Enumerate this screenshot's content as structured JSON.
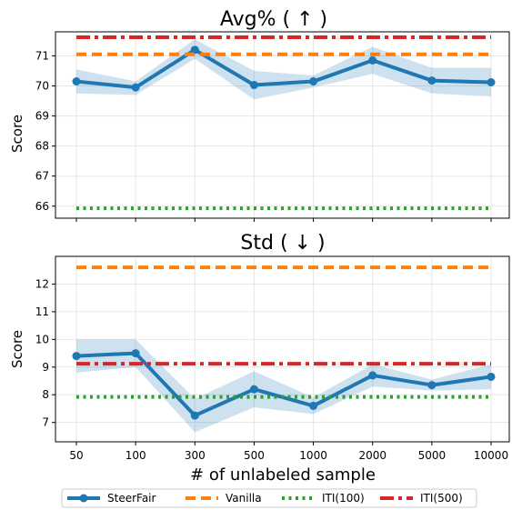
{
  "chart_data": [
    {
      "type": "line",
      "title": "Avg% ( ↑ )",
      "ylabel": "Score",
      "xlabel": "",
      "categories": [
        "50",
        "100",
        "300",
        "500",
        "1000",
        "2000",
        "5000",
        "10000"
      ],
      "ylim": [
        65.6,
        71.8
      ],
      "yticks": [
        66,
        67,
        68,
        69,
        70,
        71
      ],
      "grid": true,
      "series": [
        {
          "name": "SteerFair",
          "style": "solid-marker",
          "color": "#1f77b4",
          "values": [
            70.15,
            69.95,
            71.2,
            70.03,
            70.15,
            70.85,
            70.18,
            70.12
          ],
          "band_low": [
            69.75,
            69.7,
            70.9,
            69.55,
            69.95,
            70.4,
            69.75,
            69.65
          ],
          "band_high": [
            70.55,
            70.15,
            71.55,
            70.5,
            70.35,
            71.3,
            70.6,
            70.6
          ]
        },
        {
          "name": "Vanilla",
          "style": "dashed",
          "color": "#ff7f0e",
          "value": 71.05
        },
        {
          "name": "ITI(100)",
          "style": "dotted",
          "color": "#2ca02c",
          "value": 65.93
        },
        {
          "name": "ITI(500)",
          "style": "dashdot",
          "color": "#d62728",
          "value": 71.62
        }
      ]
    },
    {
      "type": "line",
      "title": "Std ( ↓ )",
      "ylabel": "Score",
      "xlabel": "# of unlabeled sample",
      "categories": [
        "50",
        "100",
        "300",
        "500",
        "1000",
        "2000",
        "5000",
        "10000"
      ],
      "ylim": [
        6.3,
        13.0
      ],
      "yticks": [
        7,
        8,
        9,
        10,
        11,
        12
      ],
      "grid": true,
      "series": [
        {
          "name": "SteerFair",
          "style": "solid-marker",
          "color": "#1f77b4",
          "values": [
            9.4,
            9.5,
            7.25,
            8.2,
            7.6,
            8.7,
            8.35,
            8.65
          ],
          "band_low": [
            8.8,
            9.0,
            6.65,
            7.55,
            7.3,
            8.3,
            8.15,
            8.2
          ],
          "band_high": [
            10.0,
            10.0,
            7.85,
            8.85,
            7.9,
            9.1,
            8.55,
            9.1
          ]
        },
        {
          "name": "Vanilla",
          "style": "dashed",
          "color": "#ff7f0e",
          "value": 12.6
        },
        {
          "name": "ITI(100)",
          "style": "dotted",
          "color": "#2ca02c",
          "value": 7.92
        },
        {
          "name": "ITI(500)",
          "style": "dashdot",
          "color": "#d62728",
          "value": 9.12
        }
      ]
    }
  ],
  "legend": {
    "placement": "bottom-center",
    "entries": [
      {
        "label": "SteerFair",
        "color": "#1f77b4",
        "style": "solid-marker"
      },
      {
        "label": "Vanilla",
        "color": "#ff7f0e",
        "style": "dashed"
      },
      {
        "label": "ITI(100)",
        "color": "#2ca02c",
        "style": "dotted"
      },
      {
        "label": "ITI(500)",
        "color": "#d62728",
        "style": "dashdot"
      }
    ]
  }
}
